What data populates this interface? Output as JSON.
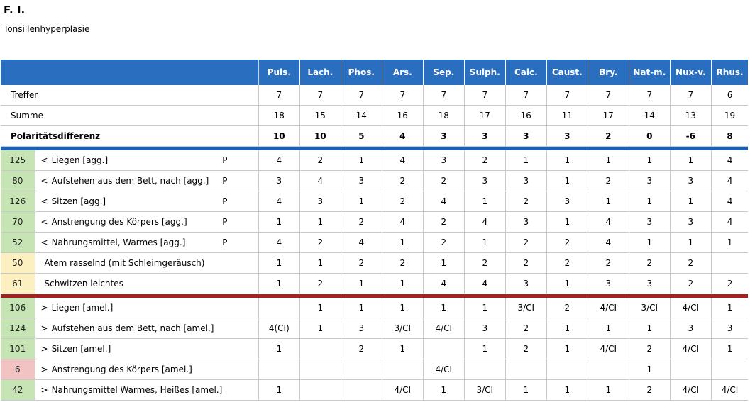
{
  "title": "F. I.",
  "subtitle": "Tonsillenhyperplasie",
  "remedies": [
    "Puls.",
    "Lach.",
    "Phos.",
    "Ars.",
    "Sep.",
    "Sulph.",
    "Calc.",
    "Caust.",
    "Bry.",
    "Nat-m.",
    "Nux-v.",
    "Rhus."
  ],
  "summary": [
    {
      "label": "Treffer",
      "bold": false,
      "values": [
        "7",
        "7",
        "7",
        "7",
        "7",
        "7",
        "7",
        "7",
        "7",
        "7",
        "7",
        "6"
      ]
    },
    {
      "label": "Summe",
      "bold": false,
      "values": [
        "18",
        "15",
        "14",
        "16",
        "18",
        "17",
        "16",
        "11",
        "17",
        "14",
        "13",
        "19"
      ]
    },
    {
      "label": "Polaritätsdifferenz",
      "bold": true,
      "values": [
        "10",
        "10",
        "5",
        "4",
        "3",
        "3",
        "3",
        "3",
        "2",
        "0",
        "-6",
        "8"
      ]
    }
  ],
  "colors": {
    "header": "#2a6fbf",
    "blue_separator": "#1f5fb0",
    "red_separator": "#a8201e",
    "count_green": "#c6e4b4",
    "count_yellow": "#fdf0c0",
    "count_red": "#f1c3c3"
  },
  "group1": [
    {
      "count": "125",
      "count_color": "green",
      "prefix": "<",
      "text": "Liegen [agg.]",
      "p": "P",
      "values": [
        "4",
        "2",
        "1",
        "4",
        "3",
        "2",
        "1",
        "1",
        "1",
        "1",
        "1",
        "4"
      ]
    },
    {
      "count": "80",
      "count_color": "green",
      "prefix": "<",
      "text": "Aufstehen aus dem Bett, nach [agg.]",
      "p": "P",
      "values": [
        "3",
        "4",
        "3",
        "2",
        "2",
        "3",
        "3",
        "1",
        "2",
        "3",
        "3",
        "4"
      ]
    },
    {
      "count": "126",
      "count_color": "green",
      "prefix": "<",
      "text": "Sitzen [agg.]",
      "p": "P",
      "values": [
        "4",
        "3",
        "1",
        "2",
        "4",
        "1",
        "2",
        "3",
        "1",
        "1",
        "1",
        "4"
      ]
    },
    {
      "count": "70",
      "count_color": "green",
      "prefix": "<",
      "text": "Anstrengung des Körpers [agg.]",
      "p": "P",
      "values": [
        "1",
        "1",
        "2",
        "4",
        "2",
        "4",
        "3",
        "1",
        "4",
        "3",
        "3",
        "4"
      ]
    },
    {
      "count": "52",
      "count_color": "green",
      "prefix": "<",
      "text": "Nahrungsmittel, Warmes [agg.]",
      "p": "P",
      "values": [
        "4",
        "2",
        "4",
        "1",
        "2",
        "1",
        "2",
        "2",
        "4",
        "1",
        "1",
        "1"
      ]
    },
    {
      "count": "50",
      "count_color": "yellow",
      "prefix": "",
      "text": "Atem rasselnd (mit Schleimgeräusch)",
      "p": "",
      "values": [
        "1",
        "1",
        "2",
        "2",
        "1",
        "2",
        "2",
        "2",
        "2",
        "2",
        "2",
        ""
      ]
    },
    {
      "count": "61",
      "count_color": "yellow",
      "prefix": "",
      "text": "Schwitzen leichtes",
      "p": "",
      "values": [
        "1",
        "2",
        "1",
        "1",
        "4",
        "4",
        "3",
        "1",
        "3",
        "3",
        "2",
        "2"
      ]
    }
  ],
  "group2": [
    {
      "count": "106",
      "count_color": "green",
      "prefix": ">",
      "text": "Liegen [amel.]",
      "p": "",
      "values": [
        "",
        "1",
        "1",
        "1",
        "1",
        "1",
        "3/CI",
        "2",
        "4/CI",
        "3/CI",
        "4/CI",
        "1"
      ]
    },
    {
      "count": "124",
      "count_color": "green",
      "prefix": ">",
      "text": "Aufstehen aus dem Bett, nach [amel.]",
      "p": "",
      "values": [
        "4(CI)",
        "1",
        "3",
        "3/CI",
        "4/CI",
        "3",
        "2",
        "1",
        "1",
        "1",
        "3",
        "3"
      ]
    },
    {
      "count": "101",
      "count_color": "green",
      "prefix": ">",
      "text": "Sitzen [amel.]",
      "p": "",
      "values": [
        "1",
        "",
        "2",
        "1",
        "",
        "1",
        "2",
        "1",
        "4/CI",
        "2",
        "4/CI",
        "1"
      ]
    },
    {
      "count": "6",
      "count_color": "red",
      "prefix": ">",
      "text": "Anstrengung des Körpers [amel.]",
      "p": "",
      "values": [
        "",
        "",
        "",
        "",
        "4/CI",
        "",
        "",
        "",
        "",
        "1",
        "",
        ""
      ]
    },
    {
      "count": "42",
      "count_color": "green",
      "prefix": ">",
      "text": "Nahrungsmittel Warmes, Heißes [amel.]",
      "p": "",
      "values": [
        "1",
        "",
        "",
        "4/CI",
        "1",
        "3/CI",
        "1",
        "1",
        "1",
        "2",
        "4/CI",
        "4/CI"
      ]
    }
  ]
}
